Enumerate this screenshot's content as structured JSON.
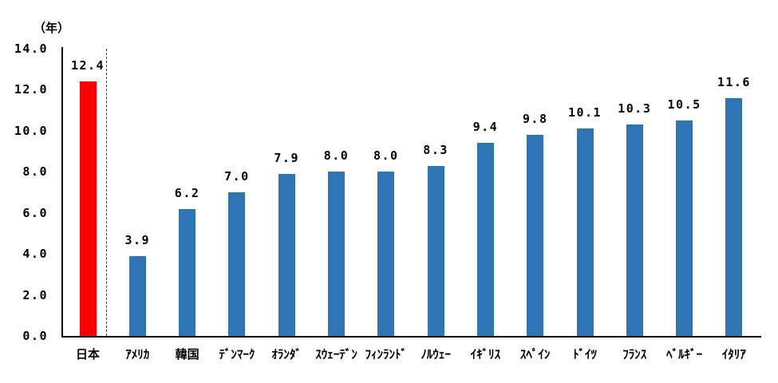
{
  "chart_data": {
    "type": "bar",
    "title": "",
    "unit_label": "（年）",
    "xlabel": "",
    "ylabel": "（年）",
    "categories": [
      "日本",
      "ｱﾒﾘｶ",
      "韓国",
      "ﾃﾞﾝﾏｰｸ",
      "ｵﾗﾝﾀﾞ",
      "ｽｳｪｰﾃﾞﾝ",
      "ﾌｨﾝﾗﾝﾄﾞ",
      "ﾉﾙｳｪｰ",
      "ｲｷﾞﾘｽ",
      "ｽﾍﾟｲﾝ",
      "ﾄﾞｲﾂ",
      "ﾌﾗﾝｽ",
      "ﾍﾞﾙｷﾞｰ",
      "ｲﾀﾘｱ"
    ],
    "values": [
      12.4,
      3.9,
      6.2,
      7.0,
      7.9,
      8.0,
      8.0,
      8.3,
      9.4,
      9.8,
      10.1,
      10.3,
      10.5,
      11.6
    ],
    "value_labels": [
      "12.4",
      "3.9",
      "6.2",
      "7.0",
      "7.9",
      "8.0",
      "8.0",
      "8.3",
      "9.4",
      "9.8",
      "10.1",
      "10.3",
      "10.5",
      "11.6"
    ],
    "ytick_labels": [
      "0.0",
      "2.0",
      "4.0",
      "6.0",
      "8.0",
      "10.0",
      "12.0",
      "14.0"
    ],
    "ylim": [
      0,
      14
    ],
    "grid": "off",
    "legend_position": "none",
    "highlight_index": 0,
    "separator_after_index": 0,
    "colors": {
      "highlight_bar": "#ff0000",
      "default_bar": "#2e75b6",
      "axis": "#000000",
      "separator": "#3f3f3f",
      "label_text": "#000000",
      "background": "#ffffff"
    }
  }
}
